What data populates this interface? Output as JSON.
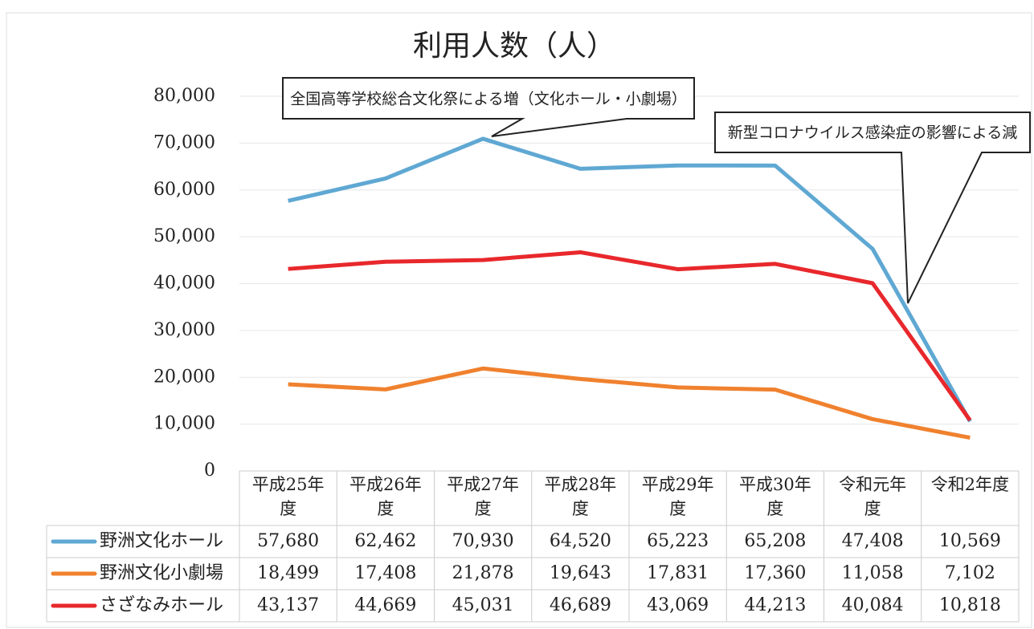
{
  "chart_data": {
    "type": "line",
    "title": "利用人数（人）",
    "categories": [
      "平成25年度",
      "平成26年度",
      "平成27年度",
      "平成28年度",
      "平成29年度",
      "平成30年度",
      "令和元年度",
      "令和2年度"
    ],
    "series": [
      {
        "name": "野洲文化ホール",
        "color": "#5fa8d3",
        "values": [
          57680,
          62462,
          70930,
          64520,
          65223,
          65208,
          47408,
          10569
        ],
        "value_labels": [
          "57,680",
          "62,462",
          "70,930",
          "64,520",
          "65,223",
          "65,208",
          "47,408",
          "10,569"
        ]
      },
      {
        "name": "野洲文化小劇場",
        "color": "#f0812e",
        "values": [
          18499,
          17408,
          21878,
          19643,
          17831,
          17360,
          11058,
          7102
        ],
        "value_labels": [
          "18,499",
          "17,408",
          "21,878",
          "19,643",
          "17,831",
          "17,360",
          "11,058",
          "7,102"
        ]
      },
      {
        "name": "さざなみホール",
        "color": "#e8282c",
        "values": [
          43137,
          44669,
          45031,
          46689,
          43069,
          44213,
          40084,
          10818
        ],
        "value_labels": [
          "43,137",
          "44,669",
          "45,031",
          "46,689",
          "43,069",
          "44,213",
          "40,084",
          "10,818"
        ]
      }
    ],
    "ylim": [
      0,
      80000
    ],
    "yticks": [
      0,
      {
        "value": 10000,
        "label": "10,000"
      },
      {
        "value": 20000,
        "label": "20,000"
      },
      {
        "value": 30000,
        "label": "30,000"
      },
      {
        "value": 40000,
        "label": "40,000"
      },
      {
        "value": 50000,
        "label": "50,000"
      },
      {
        "value": 60000,
        "label": "60,000"
      },
      {
        "value": 70000,
        "label": "70,000"
      },
      {
        "value": 80000,
        "label": "80,000"
      }
    ],
    "grid": true,
    "annotations": [
      "全国高等学校総合文化祭による増（文化ホール・小劇場）",
      "新型コロナウイルス感染症の影響による減"
    ]
  }
}
